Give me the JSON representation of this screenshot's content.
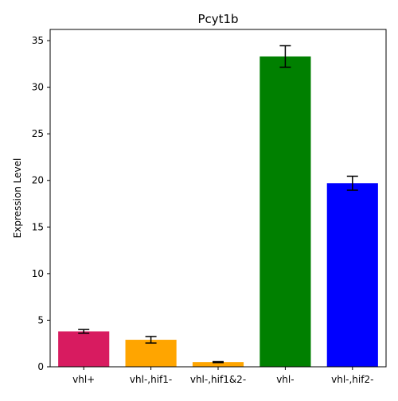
{
  "chart_data": {
    "type": "bar",
    "title": "Pcyt1b",
    "xlabel": "",
    "ylabel": "Expression Level",
    "categories": [
      "vhl+",
      "vhl-,hif1-",
      "vhl-,hif1&2-",
      "vhl-",
      "vhl-,hif2-"
    ],
    "values": [
      3.8,
      2.9,
      0.5,
      33.3,
      19.7
    ],
    "errors": [
      0.2,
      0.35,
      0.05,
      1.15,
      0.75
    ],
    "colors": [
      "#D81B60",
      "#FFA500",
      "#FFA500",
      "#008000",
      "#0000FF"
    ],
    "ylim": [
      0,
      36.2
    ],
    "yticks": [
      0,
      5,
      10,
      15,
      20,
      25,
      30,
      35
    ],
    "grid": false,
    "legend": "none"
  }
}
